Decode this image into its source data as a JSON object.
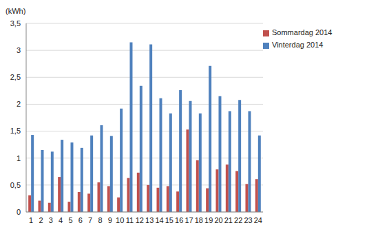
{
  "chart_data": {
    "type": "bar",
    "ylabel": "(kWh)",
    "categories": [
      "1",
      "2",
      "3",
      "4",
      "5",
      "6",
      "7",
      "8",
      "9",
      "10",
      "11",
      "12",
      "13",
      "14",
      "15",
      "16",
      "17",
      "18",
      "19",
      "20",
      "21",
      "22",
      "23",
      "24"
    ],
    "series": [
      {
        "name": "Sommardag 2014",
        "color": "#c0504d",
        "values": [
          0.31,
          0.21,
          0.17,
          0.65,
          0.19,
          0.37,
          0.34,
          0.55,
          0.48,
          0.27,
          0.63,
          0.73,
          0.5,
          0.45,
          0.48,
          0.38,
          1.53,
          0.96,
          0.44,
          0.79,
          0.88,
          0.76,
          0.52,
          0.61
        ]
      },
      {
        "name": "Vinterdag 2014",
        "color": "#4f81bd",
        "values": [
          1.43,
          1.15,
          1.12,
          1.34,
          1.29,
          1.19,
          1.42,
          1.61,
          1.41,
          1.92,
          3.15,
          2.34,
          3.11,
          2.11,
          1.83,
          2.26,
          2.06,
          1.83,
          2.71,
          2.15,
          1.87,
          2.08,
          1.87,
          1.42
        ]
      }
    ],
    "ylim": [
      0,
      3.5
    ],
    "yticks": [
      0,
      {
        "value": 0.5,
        "label": "0,5"
      },
      1,
      {
        "value": 1.5,
        "label": "1,5"
      },
      2,
      {
        "value": 2.5,
        "label": "2,5"
      },
      3,
      {
        "value": 3.5,
        "label": "3,5"
      }
    ],
    "grid": true,
    "legend": "upper right"
  }
}
